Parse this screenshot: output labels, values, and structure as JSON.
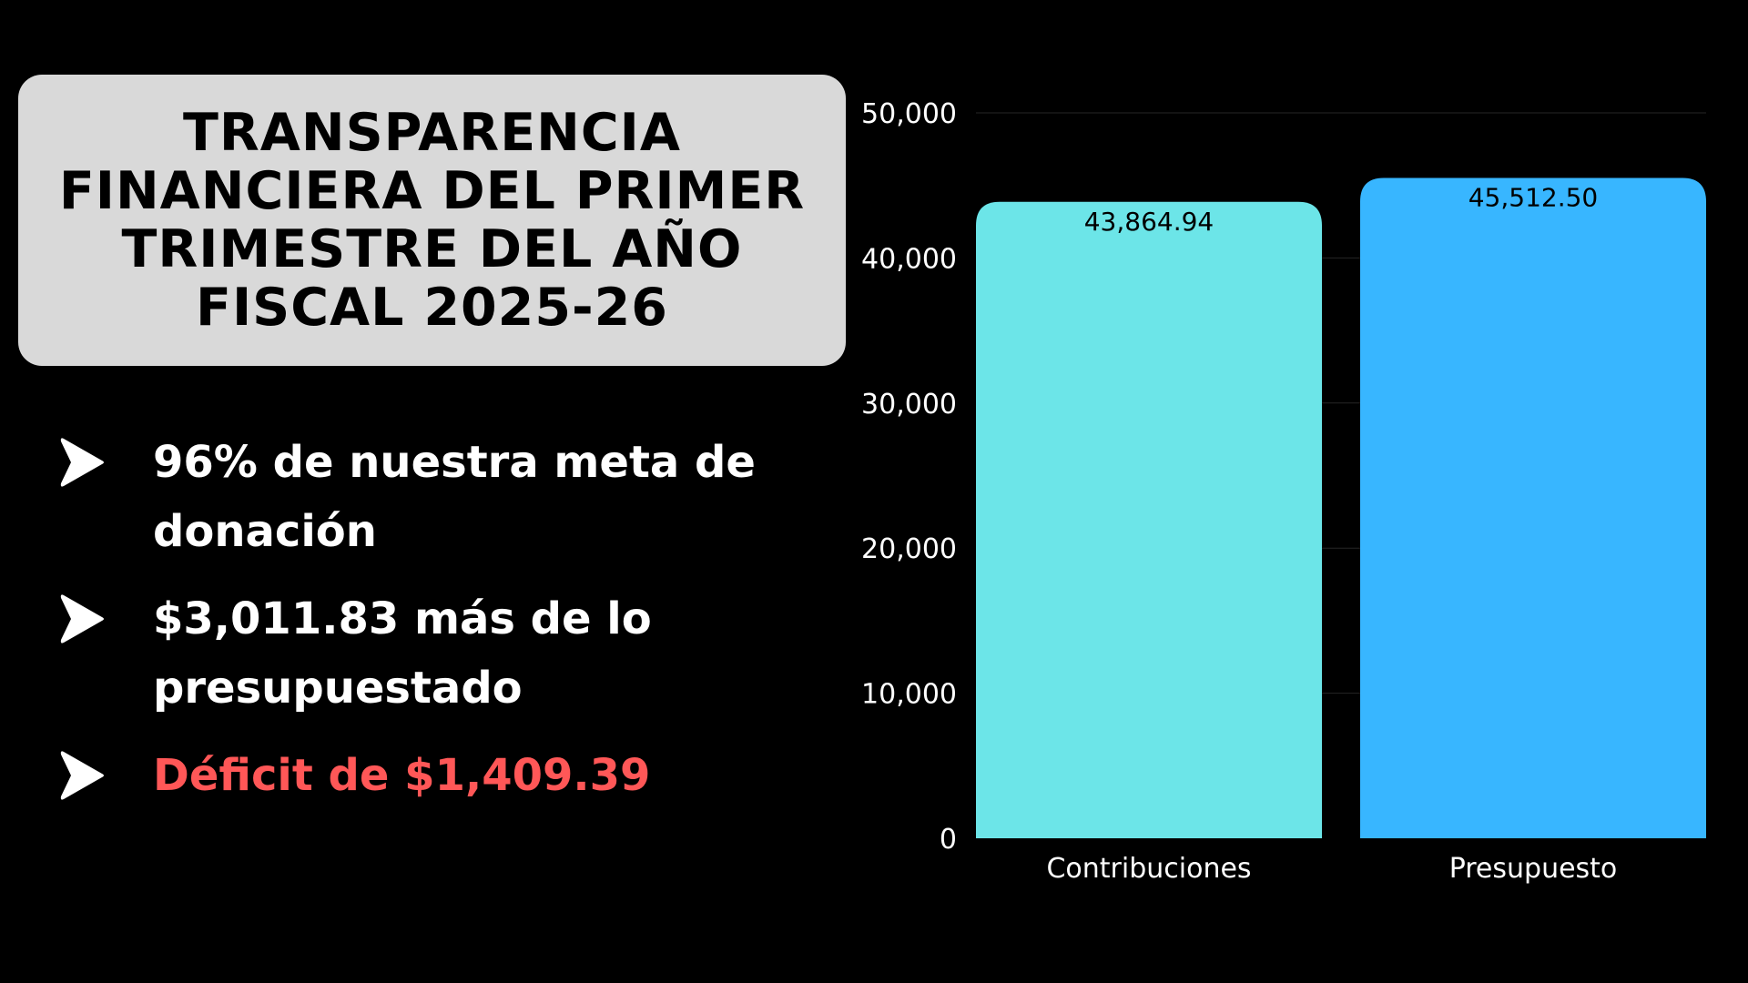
{
  "title": "TRANSPARENCIA FINANCIERA DEL PRIMER TRIMESTRE DEL AÑO FISCAL 2025-26",
  "highlights": [
    {
      "text": "96% de nuestra meta de donación",
      "color": "#ffffff"
    },
    {
      "text": "$3,011.83 más de lo presupuestado",
      "color": "#ffffff"
    },
    {
      "text": "Déficit de $1,409.39",
      "color": "#ff5757"
    }
  ],
  "colors": {
    "background": "#000000",
    "title_box": "#d9d9d9",
    "alert": "#ff5757"
  },
  "chart_data": {
    "type": "bar",
    "categories": [
      "Contribuciones",
      "Presupuesto"
    ],
    "values": [
      43864.94,
      45512.5
    ],
    "value_labels": [
      "43,864.94",
      "45,512.50"
    ],
    "bar_colors": [
      "#6ce5e8",
      "#38b6ff"
    ],
    "ylim": [
      0,
      50000
    ],
    "y_ticks": [
      0,
      10000,
      20000,
      30000,
      40000,
      50000
    ],
    "y_tick_labels": [
      "0",
      "10,000",
      "20,000",
      "30,000",
      "40,000",
      "50,000"
    ],
    "grid": true,
    "legend": "none"
  }
}
